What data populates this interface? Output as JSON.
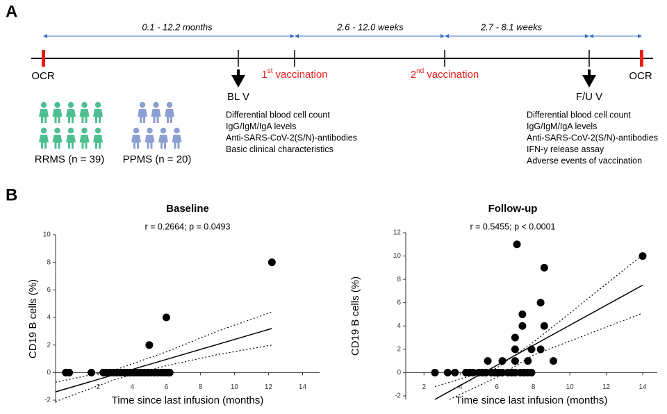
{
  "panel_a": {
    "label": "A",
    "intervals": [
      "0.1 - 12.2 months",
      "2.6 - 12.0 weeks",
      "2.7 - 8.1 weeks"
    ],
    "markers": [
      {
        "label": "OCR"
      },
      {
        "label": "BL V"
      },
      {
        "number": "1",
        "suffix": "st",
        "label": "vaccination"
      },
      {
        "number": "2",
        "suffix": "nd",
        "label": "vaccination"
      },
      {
        "label": "F/U V"
      },
      {
        "label": "OCR"
      }
    ],
    "baseline_items": [
      "Differential blood cell count",
      "IgG/IgM/IgA levels",
      "Anti-SARS-CoV-2(S/N)-antibodies",
      "Basic clinical characteristics"
    ],
    "followup_items": [
      "Differential blood cell count",
      "IgG/IgM/IgA levels",
      "Anti-SARS-CoV-2(S/N)-antibodies",
      "IFN-y release assay",
      "Adverse events of vaccination"
    ],
    "groups": [
      {
        "label": "RRMS (n = 39)",
        "color": "#4fbf92"
      },
      {
        "label": "PPMS (n = 20)",
        "color": "#8c9fd1"
      }
    ]
  },
  "panel_b": {
    "label": "B"
  },
  "chart_data": [
    {
      "type": "scatter",
      "title": "Baseline",
      "subtitle": "r = 0.2664; p = 0.0493",
      "x_label": "Time since last infusion (months)",
      "y_label": "CD19 B cells (%)",
      "xlim": [
        -0.5,
        15
      ],
      "ylim": [
        -2.2,
        10
      ],
      "xticks": [
        2,
        4,
        6,
        8,
        10,
        12,
        14
      ],
      "yticks": [
        -2,
        0,
        2,
        4,
        6,
        8,
        10
      ],
      "series": [
        {
          "style": "dots",
          "color": "#000000",
          "x": [
            0.1,
            0.3,
            1.6,
            2.3,
            2.5,
            2.7,
            2.9,
            3.1,
            3.3,
            3.5,
            3.7,
            3.9,
            4.1,
            4.3,
            4.5,
            4.7,
            4.9,
            5.1,
            5.3,
            5.5,
            5.7,
            5.9,
            6.1,
            6.2,
            5.0,
            6.0,
            12.2
          ],
          "values": [
            0,
            0,
            0,
            0,
            0,
            0,
            0,
            0,
            0,
            0,
            0,
            0,
            0,
            0,
            0,
            0,
            0,
            0,
            0,
            0,
            0,
            0,
            0,
            0,
            2,
            4,
            8
          ]
        },
        {
          "style": "solid",
          "color": "#000000",
          "x": [
            -0.5,
            12.2
          ],
          "values": [
            -1.4,
            3.2
          ]
        },
        {
          "style": "dotted",
          "color": "#000000",
          "x": [
            -0.5,
            3,
            6,
            9,
            12.2
          ],
          "values": [
            -0.7,
            0.2,
            1.5,
            3.0,
            4.4
          ]
        },
        {
          "style": "dotted",
          "color": "#000000",
          "x": [
            -0.5,
            3,
            6,
            9,
            12.2
          ],
          "values": [
            -2.1,
            -0.5,
            0.5,
            1.3,
            2.0
          ]
        }
      ]
    },
    {
      "type": "scatter",
      "title": "Follow-up",
      "subtitle": "r = 0.5455; p < 0.0001",
      "x_label": "Time since last infusion (months)",
      "y_label": "CD19 B cells (%)",
      "xlim": [
        1,
        14.8
      ],
      "ylim": [
        -2.3,
        12
      ],
      "xticks": [
        2,
        4,
        6,
        8,
        10,
        12,
        14
      ],
      "yticks": [
        -2,
        0,
        2,
        4,
        6,
        8,
        10,
        12
      ],
      "series": [
        {
          "style": "dots",
          "color": "#000000",
          "x": [
            2.6,
            3.3,
            3.7,
            4.3,
            4.5,
            4.7,
            5.0,
            5.2,
            5.4,
            5.7,
            5.9,
            6.1,
            6.3,
            6.6,
            6.8,
            7.0,
            7.3,
            7.5,
            7.7,
            7.9,
            5.5,
            6.3,
            7.0,
            7.7,
            9.1,
            7.0,
            7.0,
            7.1,
            7.4,
            7.4,
            7.9,
            8.4,
            8.4,
            8.6,
            8.6,
            14.0
          ],
          "values": [
            0,
            0,
            0,
            0,
            0,
            0,
            0,
            0,
            0,
            0,
            0,
            0,
            0,
            0,
            0,
            0,
            0,
            0,
            0,
            0,
            1,
            1,
            1,
            1,
            1,
            3,
            2,
            11,
            5,
            4,
            2,
            2,
            6,
            4,
            9,
            10
          ]
        },
        {
          "style": "solid",
          "color": "#000000",
          "x": [
            2.6,
            14
          ],
          "values": [
            -2.3,
            7.5
          ]
        },
        {
          "style": "dotted",
          "color": "#000000",
          "x": [
            2.6,
            6,
            8,
            14
          ],
          "values": [
            -1.2,
            0.4,
            2.6,
            10.1
          ]
        },
        {
          "style": "dotted",
          "color": "#000000",
          "x": [
            3.4,
            6,
            8,
            14
          ],
          "values": [
            -2.3,
            -0.4,
            1.5,
            5.1
          ]
        }
      ]
    }
  ]
}
